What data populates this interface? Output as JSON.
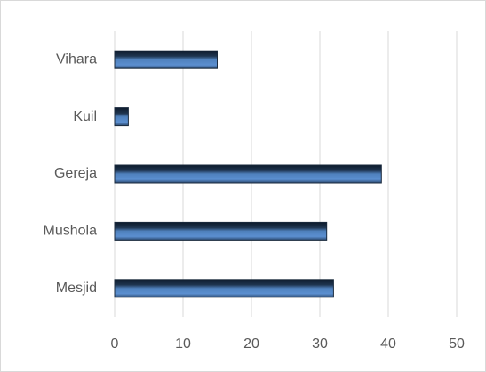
{
  "chart_data": {
    "type": "bar",
    "orientation": "horizontal",
    "categories": [
      "Vihara",
      "Kuil",
      "Gereja",
      "Mushola",
      "Mesjid"
    ],
    "values": [
      15,
      2,
      39,
      31,
      32
    ],
    "color": "#4f81bd",
    "xlim": [
      0,
      50
    ],
    "xticks": [
      0,
      10,
      20,
      30,
      40,
      50
    ],
    "grid": true
  }
}
